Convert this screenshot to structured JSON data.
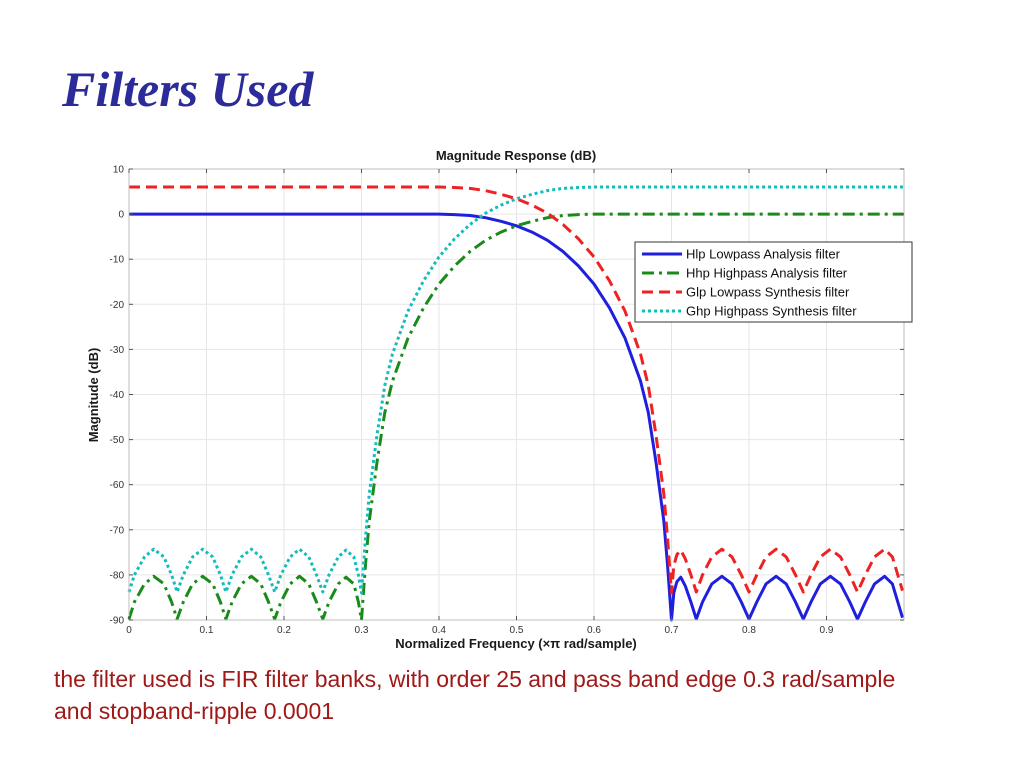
{
  "slide": {
    "title": "Filters Used",
    "caption_line1": "the filter used is FIR filter banks, with order 25 and pass band edge 0.3 rad/sample",
    "caption_line2": "and stopband-ripple 0.0001"
  },
  "chart_data": {
    "type": "line",
    "title": "Magnitude Response (dB)",
    "xlabel": "Normalized Frequency (×π rad/sample)",
    "ylabel": "Magnitude (dB)",
    "xlim": [
      0,
      1
    ],
    "ylim": [
      -90,
      10
    ],
    "grid": true,
    "legend_position": "top-right",
    "x_ticks": [
      0,
      0.1,
      0.2,
      0.3,
      0.4,
      0.5,
      0.6,
      0.7,
      0.8,
      0.9
    ],
    "x_tick_labels": [
      "0",
      "0.1",
      "0.2",
      "0.3",
      "0.4",
      "0.5",
      "0.6",
      "0.7",
      "0.8",
      "0.9"
    ],
    "y_ticks": [
      10,
      0,
      -10,
      -20,
      -30,
      -40,
      -50,
      -60,
      -70,
      -80,
      -90
    ],
    "y_tick_labels": [
      "10",
      "0",
      "-10",
      "-20",
      "-30",
      "-40",
      "-50",
      "-60",
      "-70",
      "-80",
      "-90"
    ],
    "series": [
      {
        "name": "Hlp Lowpass Analysis filter",
        "color": "#1f1fdd",
        "dash": "solid",
        "points": [
          [
            0,
            0
          ],
          [
            0.1,
            0
          ],
          [
            0.2,
            0
          ],
          [
            0.3,
            0
          ],
          [
            0.4,
            0
          ],
          [
            0.42,
            -0.1
          ],
          [
            0.44,
            -0.3
          ],
          [
            0.46,
            -0.8
          ],
          [
            0.48,
            -1.6
          ],
          [
            0.5,
            -2.6
          ],
          [
            0.52,
            -4.0
          ],
          [
            0.54,
            -5.8
          ],
          [
            0.56,
            -8.3
          ],
          [
            0.58,
            -11.5
          ],
          [
            0.6,
            -15.5
          ],
          [
            0.62,
            -20.8
          ],
          [
            0.64,
            -27.5
          ],
          [
            0.66,
            -37.0
          ],
          [
            0.67,
            -44.0
          ],
          [
            0.68,
            -55.0
          ],
          [
            0.69,
            -68.0
          ],
          [
            0.695,
            -78.0
          ],
          [
            0.7,
            -90.0
          ],
          [
            0.703,
            -84.0
          ],
          [
            0.707,
            -81.5
          ],
          [
            0.712,
            -80.5
          ],
          [
            0.718,
            -82.5
          ],
          [
            0.725,
            -86.0
          ],
          [
            0.732,
            -89.8
          ],
          [
            0.74,
            -86.0
          ],
          [
            0.752,
            -82.0
          ],
          [
            0.765,
            -80.3
          ],
          [
            0.778,
            -82.0
          ],
          [
            0.79,
            -86.0
          ],
          [
            0.8,
            -89.8
          ],
          [
            0.81,
            -86.0
          ],
          [
            0.822,
            -82.0
          ],
          [
            0.835,
            -80.3
          ],
          [
            0.848,
            -82.0
          ],
          [
            0.86,
            -86.0
          ],
          [
            0.87,
            -89.8
          ],
          [
            0.88,
            -86.0
          ],
          [
            0.892,
            -82.0
          ],
          [
            0.905,
            -80.3
          ],
          [
            0.918,
            -82.0
          ],
          [
            0.93,
            -86.0
          ],
          [
            0.94,
            -89.8
          ],
          [
            0.95,
            -86.0
          ],
          [
            0.962,
            -82.0
          ],
          [
            0.975,
            -80.3
          ],
          [
            0.985,
            -82.0
          ],
          [
            0.992,
            -86.0
          ],
          [
            0.998,
            -89.5
          ]
        ]
      },
      {
        "name": "Hhp Highpass Analysis filter",
        "color": "#1a8a1a",
        "dash": "dashdot",
        "points": [
          [
            0,
            -89.8
          ],
          [
            0.007,
            -86.0
          ],
          [
            0.02,
            -82.0
          ],
          [
            0.032,
            -80.3
          ],
          [
            0.045,
            -82.0
          ],
          [
            0.055,
            -86.0
          ],
          [
            0.062,
            -89.8
          ],
          [
            0.07,
            -86.0
          ],
          [
            0.082,
            -82.0
          ],
          [
            0.095,
            -80.3
          ],
          [
            0.108,
            -82.0
          ],
          [
            0.118,
            -86.0
          ],
          [
            0.125,
            -89.8
          ],
          [
            0.133,
            -86.0
          ],
          [
            0.145,
            -82.0
          ],
          [
            0.158,
            -80.3
          ],
          [
            0.17,
            -82.0
          ],
          [
            0.18,
            -86.0
          ],
          [
            0.188,
            -89.8
          ],
          [
            0.196,
            -86.0
          ],
          [
            0.208,
            -82.0
          ],
          [
            0.22,
            -80.3
          ],
          [
            0.232,
            -82.0
          ],
          [
            0.242,
            -86.0
          ],
          [
            0.25,
            -89.8
          ],
          [
            0.258,
            -86.0
          ],
          [
            0.27,
            -82.0
          ],
          [
            0.28,
            -80.5
          ],
          [
            0.29,
            -82.0
          ],
          [
            0.296,
            -86.0
          ],
          [
            0.3,
            -90.0
          ],
          [
            0.305,
            -78.0
          ],
          [
            0.31,
            -68.0
          ],
          [
            0.32,
            -55.0
          ],
          [
            0.33,
            -44.0
          ],
          [
            0.34,
            -37.0
          ],
          [
            0.36,
            -27.5
          ],
          [
            0.38,
            -20.8
          ],
          [
            0.4,
            -15.5
          ],
          [
            0.42,
            -11.5
          ],
          [
            0.44,
            -8.3
          ],
          [
            0.46,
            -5.8
          ],
          [
            0.48,
            -4.0
          ],
          [
            0.5,
            -2.6
          ],
          [
            0.52,
            -1.6
          ],
          [
            0.54,
            -0.8
          ],
          [
            0.56,
            -0.3
          ],
          [
            0.58,
            -0.1
          ],
          [
            0.6,
            0
          ],
          [
            0.7,
            0
          ],
          [
            0.8,
            0
          ],
          [
            0.9,
            0
          ],
          [
            1.0,
            0
          ]
        ]
      },
      {
        "name": "Glp Lowpass Synthesis filter",
        "color": "#ee2222",
        "dash": "dashed",
        "points": [
          [
            0,
            6
          ],
          [
            0.1,
            6
          ],
          [
            0.2,
            6
          ],
          [
            0.3,
            6
          ],
          [
            0.4,
            6
          ],
          [
            0.42,
            5.9
          ],
          [
            0.44,
            5.7
          ],
          [
            0.46,
            5.2
          ],
          [
            0.48,
            4.4
          ],
          [
            0.5,
            3.4
          ],
          [
            0.52,
            2.0
          ],
          [
            0.54,
            0.2
          ],
          [
            0.56,
            -2.3
          ],
          [
            0.58,
            -5.5
          ],
          [
            0.6,
            -9.5
          ],
          [
            0.62,
            -14.8
          ],
          [
            0.64,
            -21.5
          ],
          [
            0.66,
            -31.0
          ],
          [
            0.67,
            -38.0
          ],
          [
            0.68,
            -49.0
          ],
          [
            0.69,
            -62.0
          ],
          [
            0.695,
            -72.0
          ],
          [
            0.7,
            -84.0
          ],
          [
            0.703,
            -78.0
          ],
          [
            0.707,
            -75.5
          ],
          [
            0.712,
            -74.5
          ],
          [
            0.718,
            -76.5
          ],
          [
            0.725,
            -80.0
          ],
          [
            0.732,
            -83.8
          ],
          [
            0.74,
            -80.0
          ],
          [
            0.752,
            -76.0
          ],
          [
            0.765,
            -74.3
          ],
          [
            0.778,
            -76.0
          ],
          [
            0.79,
            -80.0
          ],
          [
            0.8,
            -83.8
          ],
          [
            0.81,
            -80.0
          ],
          [
            0.822,
            -76.0
          ],
          [
            0.835,
            -74.3
          ],
          [
            0.848,
            -76.0
          ],
          [
            0.86,
            -80.0
          ],
          [
            0.87,
            -83.8
          ],
          [
            0.88,
            -80.0
          ],
          [
            0.892,
            -76.0
          ],
          [
            0.905,
            -74.3
          ],
          [
            0.918,
            -76.0
          ],
          [
            0.93,
            -80.0
          ],
          [
            0.94,
            -83.8
          ],
          [
            0.95,
            -80.0
          ],
          [
            0.962,
            -76.0
          ],
          [
            0.975,
            -74.3
          ],
          [
            0.985,
            -76.0
          ],
          [
            0.992,
            -80.0
          ],
          [
            0.998,
            -83.5
          ]
        ]
      },
      {
        "name": "Ghp Highpass Synthesis filter",
        "color": "#14bcbc",
        "dash": "dotted",
        "points": [
          [
            0,
            -83.8
          ],
          [
            0.007,
            -80.0
          ],
          [
            0.02,
            -76.0
          ],
          [
            0.032,
            -74.3
          ],
          [
            0.045,
            -76.0
          ],
          [
            0.055,
            -80.0
          ],
          [
            0.062,
            -83.8
          ],
          [
            0.07,
            -80.0
          ],
          [
            0.082,
            -76.0
          ],
          [
            0.095,
            -74.3
          ],
          [
            0.108,
            -76.0
          ],
          [
            0.118,
            -80.0
          ],
          [
            0.125,
            -83.8
          ],
          [
            0.133,
            -80.0
          ],
          [
            0.145,
            -76.0
          ],
          [
            0.158,
            -74.3
          ],
          [
            0.17,
            -76.0
          ],
          [
            0.18,
            -80.0
          ],
          [
            0.188,
            -83.8
          ],
          [
            0.196,
            -80.0
          ],
          [
            0.208,
            -76.0
          ],
          [
            0.22,
            -74.3
          ],
          [
            0.232,
            -76.0
          ],
          [
            0.242,
            -80.0
          ],
          [
            0.25,
            -83.8
          ],
          [
            0.258,
            -80.0
          ],
          [
            0.27,
            -76.0
          ],
          [
            0.28,
            -74.5
          ],
          [
            0.29,
            -76.0
          ],
          [
            0.296,
            -80.0
          ],
          [
            0.3,
            -84.0
          ],
          [
            0.305,
            -72.0
          ],
          [
            0.31,
            -62.0
          ],
          [
            0.32,
            -49.0
          ],
          [
            0.33,
            -38.0
          ],
          [
            0.34,
            -31.0
          ],
          [
            0.36,
            -21.5
          ],
          [
            0.38,
            -14.8
          ],
          [
            0.4,
            -9.5
          ],
          [
            0.42,
            -5.5
          ],
          [
            0.44,
            -2.3
          ],
          [
            0.46,
            0.2
          ],
          [
            0.48,
            2.0
          ],
          [
            0.5,
            3.4
          ],
          [
            0.52,
            4.4
          ],
          [
            0.54,
            5.2
          ],
          [
            0.56,
            5.7
          ],
          [
            0.58,
            5.9
          ],
          [
            0.6,
            6
          ],
          [
            0.7,
            6
          ],
          [
            0.8,
            6
          ],
          [
            0.9,
            6
          ],
          [
            1.0,
            6
          ]
        ]
      }
    ]
  }
}
